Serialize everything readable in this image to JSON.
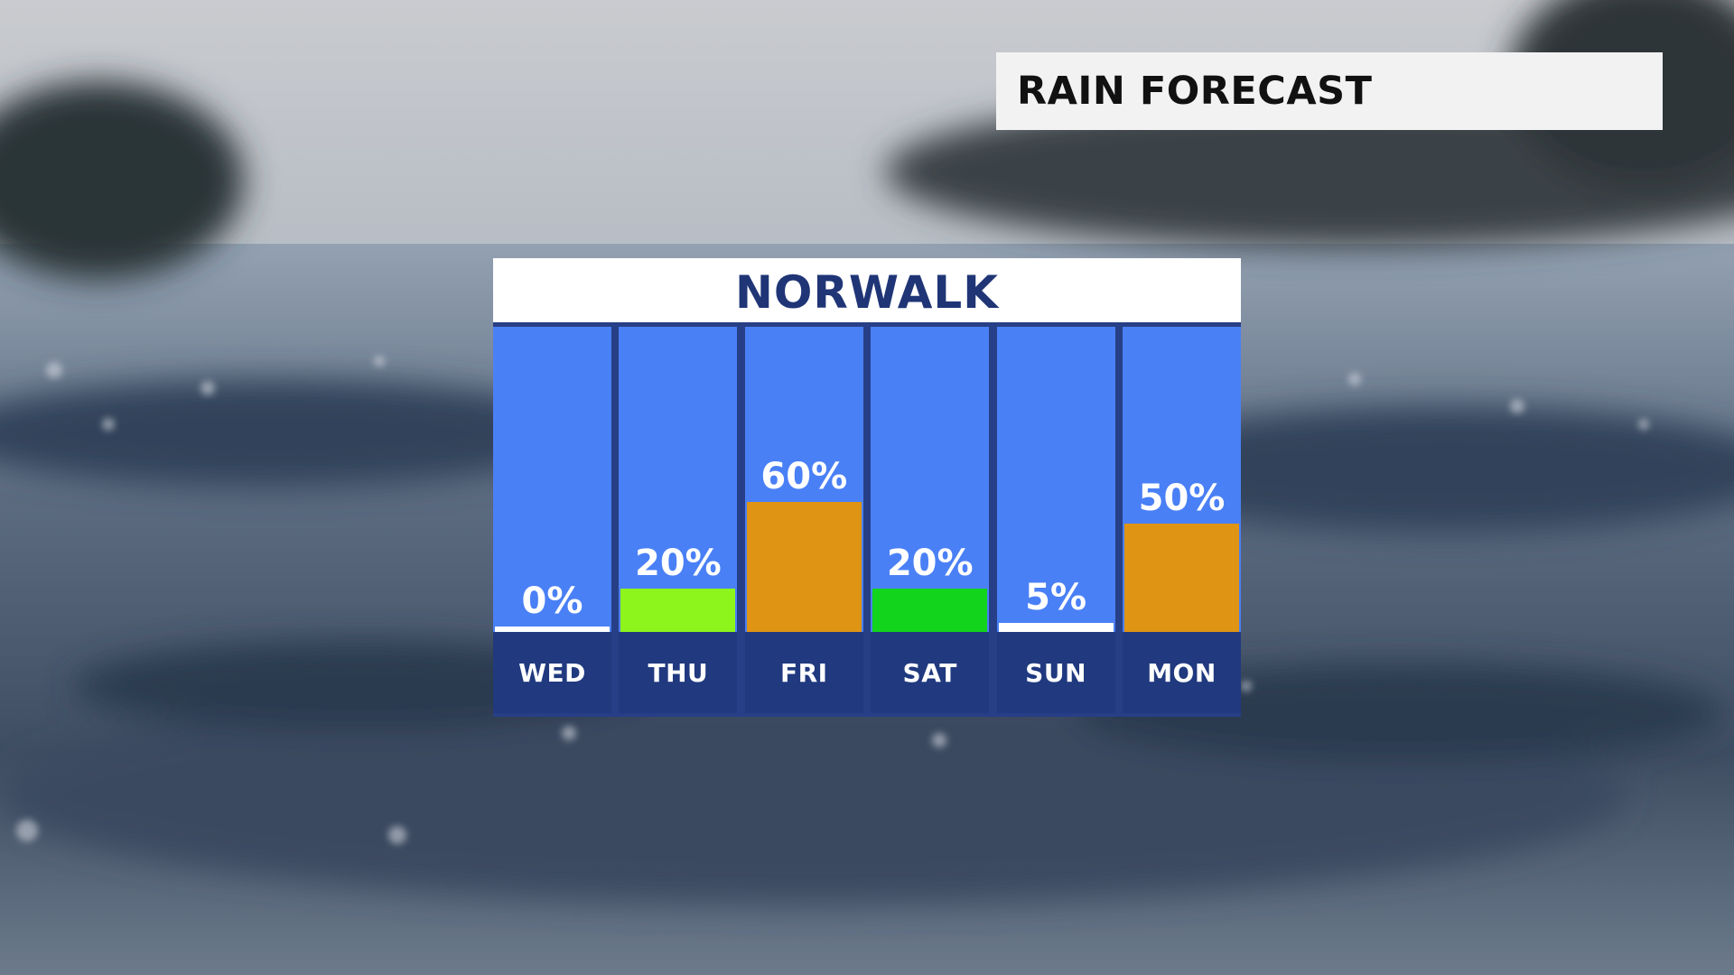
{
  "banner": {
    "title": "RAIN FORECAST"
  },
  "chart_data": {
    "type": "bar",
    "title": "NORWALK",
    "categories": [
      "WED",
      "THU",
      "FRI",
      "SAT",
      "SUN",
      "MON"
    ],
    "values": [
      0,
      20,
      60,
      20,
      5,
      50
    ],
    "labels": [
      "0%",
      "20%",
      "60%",
      "20%",
      "5%",
      "50%"
    ],
    "colors": [
      "#ffffff",
      "#8ef51c",
      "#df9413",
      "#13d41c",
      "#ffffff",
      "#df9413"
    ],
    "ylim": [
      0,
      100
    ],
    "grid": false
  }
}
